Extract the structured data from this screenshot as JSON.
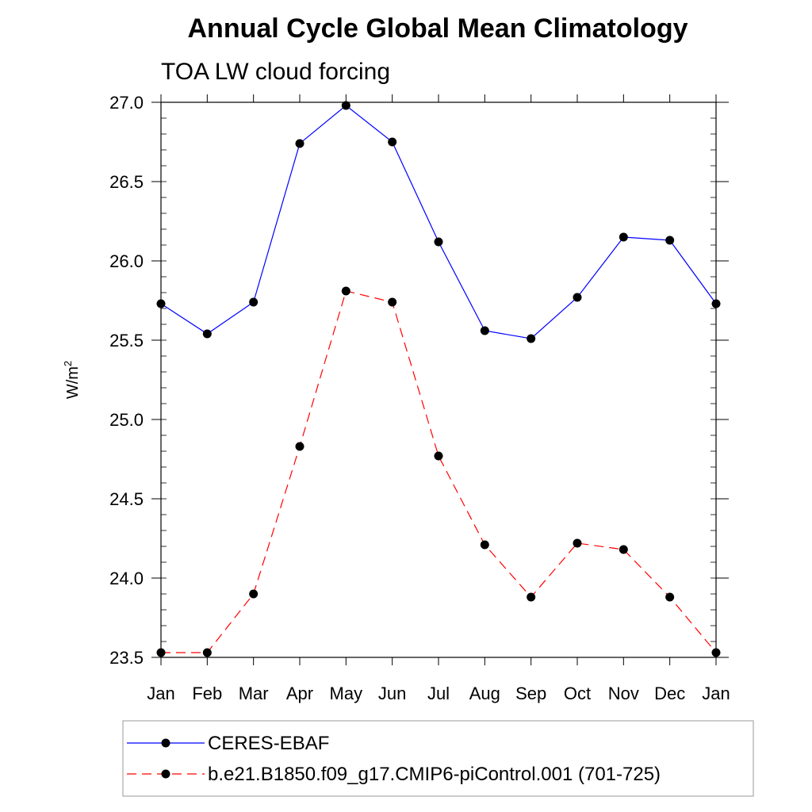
{
  "chart_data": {
    "type": "line",
    "title": "Annual Cycle Global Mean Climatology",
    "subtitle": "TOA LW cloud forcing",
    "ylabel": "W/m",
    "ylabel_superscript": "2",
    "xlabel": "",
    "categories": [
      "Jan",
      "Feb",
      "Mar",
      "Apr",
      "May",
      "Jun",
      "Jul",
      "Aug",
      "Sep",
      "Oct",
      "Nov",
      "Dec",
      "Jan"
    ],
    "ylim": [
      23.5,
      27.0
    ],
    "yticks": [
      "23.5",
      "24.0",
      "24.5",
      "25.0",
      "25.5",
      "26.0",
      "26.5",
      "27.0"
    ],
    "grid": false,
    "legend_position": "bottom",
    "series": [
      {
        "name": "CERES-EBAF",
        "color": "#0000ff",
        "line_style": "solid",
        "marker": "filled-circle",
        "values": [
          25.73,
          25.54,
          25.74,
          26.74,
          26.98,
          26.75,
          26.12,
          25.56,
          25.51,
          25.77,
          26.15,
          26.13,
          25.73
        ]
      },
      {
        "name": "b.e21.B1850.f09_g17.CMIP6-piControl.001 (701-725)",
        "color": "#ff0000",
        "line_style": "dashed",
        "marker": "filled-circle",
        "values": [
          23.53,
          23.53,
          23.9,
          24.83,
          25.81,
          25.74,
          24.77,
          24.21,
          23.88,
          24.22,
          24.18,
          23.88,
          23.53
        ]
      }
    ]
  }
}
